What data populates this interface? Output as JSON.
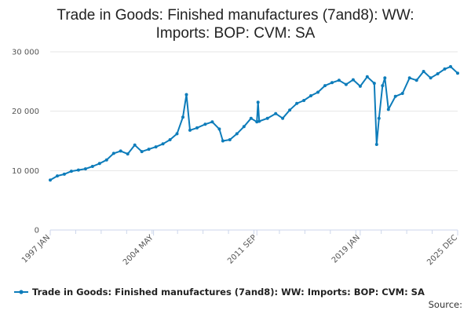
{
  "chart_data": {
    "type": "line",
    "title_lines": [
      "Trade in Goods: Finished manufactures (7and8): WW:",
      "Imports: BOP: CVM: SA"
    ],
    "xlabel": "",
    "ylabel": "",
    "ylim": [
      0,
      30000
    ],
    "yticks": [
      0,
      10000,
      20000,
      30000
    ],
    "ytick_labels": [
      "0",
      "10 000",
      "20 000",
      "30 000"
    ],
    "xlim": [
      "1997-01",
      "2025-12"
    ],
    "xtick_labels": [
      "1997 JAN",
      "2004 MAY",
      "2011 SEP",
      "2019 JAN",
      "2025 DEC"
    ],
    "xtick_dates": [
      "1997-01",
      "2004-05",
      "2011-09",
      "2019-01",
      "2025-12"
    ],
    "grid": true,
    "legend_position": "bottom",
    "series": [
      {
        "name": "Trade in Goods: Finished manufactures (7and8): WW: Imports: BOP: CVM: SA",
        "color": "#0d7cba",
        "points": [
          [
            "1997-01",
            8400
          ],
          [
            "1997-07",
            9100
          ],
          [
            "1998-01",
            9400
          ],
          [
            "1998-07",
            9900
          ],
          [
            "1999-01",
            10100
          ],
          [
            "1999-07",
            10300
          ],
          [
            "2000-01",
            10700
          ],
          [
            "2000-07",
            11200
          ],
          [
            "2001-01",
            11800
          ],
          [
            "2001-07",
            12900
          ],
          [
            "2002-01",
            13300
          ],
          [
            "2002-07",
            12800
          ],
          [
            "2003-01",
            14300
          ],
          [
            "2003-07",
            13200
          ],
          [
            "2004-01",
            13600
          ],
          [
            "2004-07",
            14000
          ],
          [
            "2005-01",
            14500
          ],
          [
            "2005-07",
            15200
          ],
          [
            "2006-01",
            16200
          ],
          [
            "2006-06",
            19000
          ],
          [
            "2006-09",
            22800
          ],
          [
            "2006-12",
            16800
          ],
          [
            "2007-06",
            17200
          ],
          [
            "2008-01",
            17800
          ],
          [
            "2008-07",
            18200
          ],
          [
            "2009-01",
            17000
          ],
          [
            "2009-04",
            15000
          ],
          [
            "2009-10",
            15200
          ],
          [
            "2010-04",
            16200
          ],
          [
            "2010-10",
            17400
          ],
          [
            "2011-04",
            18800
          ],
          [
            "2011-09",
            18200
          ],
          [
            "2011-10",
            21500
          ],
          [
            "2011-11",
            18300
          ],
          [
            "2012-06",
            18800
          ],
          [
            "2013-01",
            19600
          ],
          [
            "2013-07",
            18800
          ],
          [
            "2014-01",
            20200
          ],
          [
            "2014-07",
            21300
          ],
          [
            "2015-01",
            21800
          ],
          [
            "2015-07",
            22600
          ],
          [
            "2016-01",
            23200
          ],
          [
            "2016-07",
            24300
          ],
          [
            "2017-01",
            24800
          ],
          [
            "2017-07",
            25200
          ],
          [
            "2018-01",
            24500
          ],
          [
            "2018-07",
            25300
          ],
          [
            "2019-01",
            24200
          ],
          [
            "2019-07",
            25800
          ],
          [
            "2020-01",
            24700
          ],
          [
            "2020-03",
            14400
          ],
          [
            "2020-05",
            18800
          ],
          [
            "2020-08",
            24300
          ],
          [
            "2020-10",
            25600
          ],
          [
            "2021-01",
            20300
          ],
          [
            "2021-07",
            22500
          ],
          [
            "2022-01",
            23000
          ],
          [
            "2022-07",
            25600
          ],
          [
            "2023-01",
            25200
          ],
          [
            "2023-07",
            26700
          ],
          [
            "2024-01",
            25600
          ],
          [
            "2024-07",
            26300
          ],
          [
            "2025-01",
            27100
          ],
          [
            "2025-06",
            27500
          ],
          [
            "2025-12",
            26400
          ]
        ]
      }
    ],
    "source_label": "Source:"
  }
}
